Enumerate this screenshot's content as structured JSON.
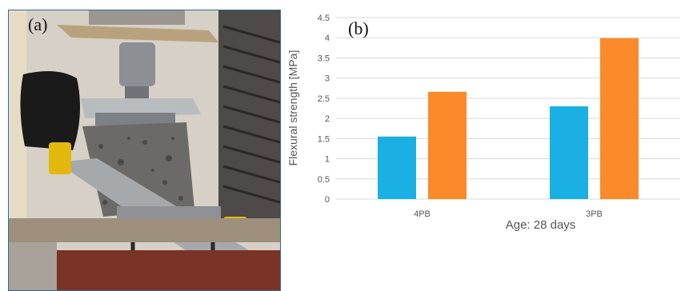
{
  "panel_a": {
    "label": "(a)"
  },
  "panel_b": {
    "label": "(b)"
  },
  "colors": {
    "series_1": "#1ab0e4",
    "series_2": "#fb8a2a",
    "grid": "#d9d9d9"
  },
  "chart_data": {
    "type": "bar",
    "categories": [
      "4PB",
      "3PB"
    ],
    "series": [
      {
        "values": [
          1.55,
          2.3
        ]
      },
      {
        "values": [
          2.66,
          3.99
        ]
      }
    ],
    "xlabel": "Age: 28 days",
    "ylabel": "Flexural strength [MPa]",
    "ylim": [
      0,
      4.5
    ],
    "yticks": [
      0,
      0.5,
      1,
      1.5,
      2,
      2.5,
      3,
      3.5,
      4,
      4.5
    ],
    "ytick_labels": [
      "0",
      "0.5",
      "1",
      "1.5",
      "2",
      "2.5",
      "3",
      "3.5",
      "4",
      "4.5"
    ],
    "grid": true,
    "legend": false
  }
}
